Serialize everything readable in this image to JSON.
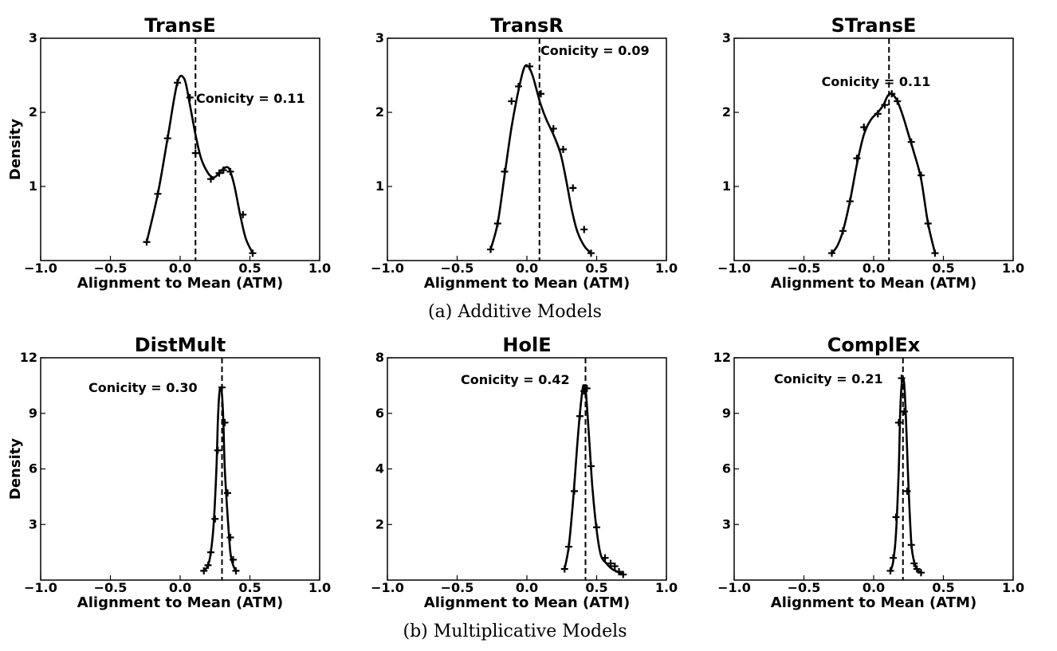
{
  "captions": [
    "(a) Additive Models",
    "(b) Multiplicative Models"
  ],
  "chart_data": [
    {
      "type": "line",
      "title": "TransE",
      "xlabel": "Alignment to Mean (ATM)",
      "ylabel": "Density",
      "xlim": [
        -1.0,
        1.0
      ],
      "ylim": [
        0,
        3
      ],
      "xticks": [
        -1.0,
        -0.5,
        0.0,
        0.5,
        1.0
      ],
      "xtick_labels": [
        "−1.0",
        "−0.5",
        "0.0",
        "0.5",
        "1.0"
      ],
      "yticks": [
        1,
        2,
        3
      ],
      "ytick_labels": [
        "1",
        "2",
        "3"
      ],
      "conicity": 0.11,
      "annotation": "Conicity = 0.11",
      "x": [
        -0.24,
        -0.16,
        -0.09,
        -0.02,
        0.03,
        0.07,
        0.11,
        0.15,
        0.2,
        0.24,
        0.28,
        0.31,
        0.34,
        0.36,
        0.39,
        0.43,
        0.47,
        0.52
      ],
      "y": [
        0.25,
        0.9,
        1.65,
        2.4,
        2.45,
        2.1,
        1.7,
        1.38,
        1.18,
        1.12,
        1.18,
        1.24,
        1.26,
        1.2,
        1.0,
        0.62,
        0.3,
        0.1
      ],
      "markers_x": [
        -0.24,
        -0.16,
        -0.09,
        -0.02,
        0.07,
        0.11,
        0.22,
        0.28,
        0.31,
        0.36,
        0.45,
        0.52
      ],
      "markers_y": [
        0.25,
        0.9,
        1.65,
        2.4,
        2.2,
        1.45,
        1.1,
        1.18,
        1.22,
        1.2,
        0.62,
        0.1
      ]
    },
    {
      "type": "line",
      "title": "TransR",
      "xlabel": "Alignment to Mean (ATM)",
      "ylabel": "",
      "xlim": [
        -1.0,
        1.0
      ],
      "ylim": [
        0,
        3
      ],
      "xticks": [
        -1.0,
        -0.5,
        0.0,
        0.5,
        1.0
      ],
      "xtick_labels": [
        "−1.0",
        "−0.5",
        "0.0",
        "0.5",
        "1.0"
      ],
      "yticks": [
        1,
        2,
        3
      ],
      "ytick_labels": [
        "1",
        "2",
        "3"
      ],
      "conicity": 0.09,
      "annotation": "Conicity = 0.09",
      "x": [
        -0.26,
        -0.21,
        -0.16,
        -0.11,
        -0.06,
        -0.02,
        0.01,
        0.04,
        0.07,
        0.1,
        0.14,
        0.19,
        0.24,
        0.28,
        0.32,
        0.36,
        0.41,
        0.46
      ],
      "y": [
        0.15,
        0.5,
        1.15,
        1.8,
        2.3,
        2.6,
        2.62,
        2.5,
        2.3,
        2.1,
        1.9,
        1.7,
        1.45,
        1.1,
        0.7,
        0.4,
        0.2,
        0.1
      ],
      "markers_x": [
        -0.26,
        -0.21,
        -0.16,
        -0.11,
        -0.06,
        0.02,
        0.1,
        0.19,
        0.26,
        0.33,
        0.41,
        0.46
      ],
      "markers_y": [
        0.15,
        0.5,
        1.2,
        2.15,
        2.35,
        2.62,
        2.25,
        1.78,
        1.5,
        0.98,
        0.42,
        0.1
      ]
    },
    {
      "type": "line",
      "title": "STransE",
      "xlabel": "Alignment to Mean (ATM)",
      "ylabel": "",
      "xlim": [
        -1.0,
        1.0
      ],
      "ylim": [
        0,
        3
      ],
      "xticks": [
        -1.0,
        -0.5,
        0.0,
        0.5,
        1.0
      ],
      "xtick_labels": [
        "−1.0",
        "−0.5",
        "0.0",
        "0.5",
        "1.0"
      ],
      "yticks": [
        1,
        2,
        3
      ],
      "ytick_labels": [
        "1",
        "2",
        "3"
      ],
      "conicity": 0.11,
      "annotation": "Conicity = 0.11",
      "x": [
        -0.3,
        -0.26,
        -0.22,
        -0.17,
        -0.12,
        -0.07,
        -0.02,
        0.03,
        0.07,
        0.1,
        0.13,
        0.17,
        0.21,
        0.25,
        0.29,
        0.34,
        0.39,
        0.44
      ],
      "y": [
        0.1,
        0.2,
        0.4,
        0.8,
        1.3,
        1.7,
        1.9,
        2.0,
        2.1,
        2.22,
        2.25,
        2.15,
        1.95,
        1.7,
        1.45,
        1.1,
        0.5,
        0.1
      ],
      "markers_x": [
        -0.3,
        -0.22,
        -0.17,
        -0.12,
        -0.07,
        0.03,
        0.08,
        0.13,
        0.17,
        0.27,
        0.34,
        0.39,
        0.44
      ],
      "markers_y": [
        0.1,
        0.4,
        0.8,
        1.38,
        1.8,
        1.98,
        2.1,
        2.25,
        2.15,
        1.6,
        1.15,
        0.5,
        0.1
      ]
    },
    {
      "type": "line",
      "title": "DistMult",
      "xlabel": "Alignment to Mean (ATM)",
      "ylabel": "Density",
      "xlim": [
        -1.0,
        1.0
      ],
      "ylim": [
        0,
        12
      ],
      "xticks": [
        -1.0,
        -0.5,
        0.0,
        0.5,
        1.0
      ],
      "xtick_labels": [
        "−1.0",
        "−0.5",
        "0.0",
        "0.5",
        "1.0"
      ],
      "yticks": [
        3,
        6,
        9,
        12
      ],
      "ytick_labels": [
        "3",
        "6",
        "9",
        "12"
      ],
      "conicity": 0.3,
      "annotation": "Conicity = 0.30",
      "x": [
        0.17,
        0.2,
        0.22,
        0.24,
        0.26,
        0.27,
        0.28,
        0.29,
        0.3,
        0.31,
        0.32,
        0.34,
        0.36,
        0.38,
        0.4
      ],
      "y": [
        0.5,
        0.8,
        1.5,
        3.0,
        6.0,
        8.5,
        10.0,
        10.4,
        10.0,
        8.5,
        6.0,
        3.5,
        1.5,
        0.8,
        0.5
      ],
      "markers_x": [
        0.17,
        0.2,
        0.22,
        0.25,
        0.27,
        0.3,
        0.32,
        0.34,
        0.36,
        0.38,
        0.4
      ],
      "markers_y": [
        0.5,
        0.8,
        1.5,
        3.3,
        7.0,
        10.4,
        8.5,
        4.7,
        2.3,
        1.1,
        0.5
      ]
    },
    {
      "type": "line",
      "title": "HolE",
      "xlabel": "Alignment to Mean (ATM)",
      "ylabel": "",
      "xlim": [
        -1.0,
        1.0
      ],
      "ylim": [
        0,
        8
      ],
      "xticks": [
        -1.0,
        -0.5,
        0.0,
        0.5,
        1.0
      ],
      "xtick_labels": [
        "−1.0",
        "−0.5",
        "0.0",
        "0.5",
        "1.0"
      ],
      "yticks": [
        2,
        4,
        6,
        8
      ],
      "ytick_labels": [
        "2",
        "4",
        "6",
        "8"
      ],
      "conicity": 0.42,
      "annotation": "Conicity = 0.42",
      "x": [
        0.27,
        0.3,
        0.33,
        0.36,
        0.38,
        0.4,
        0.41,
        0.42,
        0.43,
        0.45,
        0.47,
        0.5,
        0.53,
        0.57,
        0.61,
        0.65,
        0.69
      ],
      "y": [
        0.4,
        1.2,
        2.8,
        4.8,
        6.0,
        6.9,
        7.0,
        6.9,
        6.3,
        4.8,
        3.3,
        1.8,
        0.9,
        0.6,
        0.4,
        0.3,
        0.2
      ],
      "markers_x": [
        0.27,
        0.3,
        0.34,
        0.38,
        0.41,
        0.43,
        0.46,
        0.5,
        0.56,
        0.6,
        0.63,
        0.66,
        0.69
      ],
      "markers_y": [
        0.4,
        1.2,
        3.2,
        5.9,
        6.8,
        6.9,
        4.1,
        1.9,
        0.8,
        0.6,
        0.5,
        0.3,
        0.2
      ]
    },
    {
      "type": "line",
      "title": "ComplEx",
      "xlabel": "Alignment to Mean (ATM)",
      "ylabel": "",
      "xlim": [
        -1.0,
        1.0
      ],
      "ylim": [
        0,
        12
      ],
      "xticks": [
        -1.0,
        -0.5,
        0.0,
        0.5,
        1.0
      ],
      "xtick_labels": [
        "−1.0",
        "−0.5",
        "0.0",
        "0.5",
        "1.0"
      ],
      "yticks": [
        3,
        6,
        9,
        12
      ],
      "ytick_labels": [
        "3",
        "6",
        "9",
        "12"
      ],
      "conicity": 0.21,
      "annotation": "Conicity = 0.21",
      "x": [
        0.12,
        0.14,
        0.16,
        0.18,
        0.19,
        0.2,
        0.21,
        0.22,
        0.23,
        0.24,
        0.25,
        0.27,
        0.29,
        0.31,
        0.34
      ],
      "y": [
        0.5,
        1.0,
        2.5,
        6.0,
        9.0,
        10.5,
        10.9,
        10.5,
        9.0,
        7.0,
        5.0,
        2.0,
        1.0,
        0.6,
        0.4
      ],
      "markers_x": [
        0.12,
        0.14,
        0.16,
        0.18,
        0.2,
        0.22,
        0.24,
        0.27,
        0.29,
        0.31,
        0.34
      ],
      "markers_y": [
        0.5,
        1.2,
        3.4,
        8.5,
        10.9,
        9.1,
        4.8,
        1.9,
        0.9,
        0.6,
        0.4
      ]
    }
  ]
}
